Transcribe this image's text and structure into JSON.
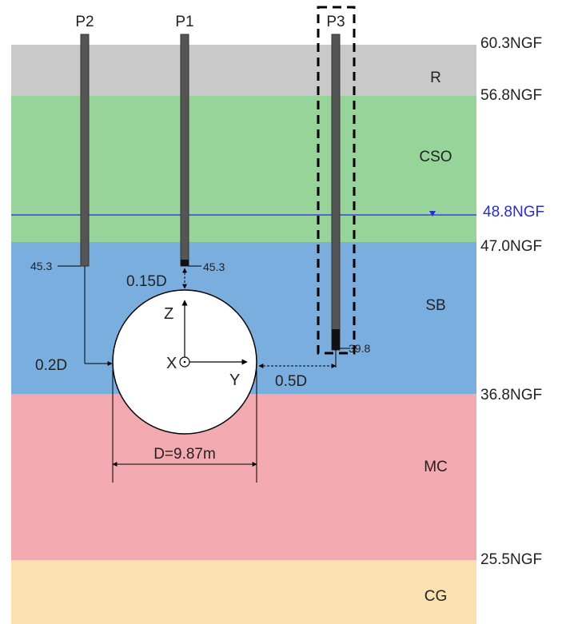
{
  "layers": [
    {
      "name": "R",
      "color": "#c9c9c9"
    },
    {
      "name": "CSO",
      "color": "#96d49a"
    },
    {
      "name": "SB",
      "color": "#7aaede"
    },
    {
      "name": "MC",
      "color": "#f2aab0"
    },
    {
      "name": "CG",
      "color": "#fbe1b0"
    }
  ],
  "elevations": [
    "60.3NGF",
    "56.8NGF",
    "48.8NGF",
    "47.0NGF",
    "36.8NGF",
    "25.5NGF"
  ],
  "water_table_color": "#2b2bd9",
  "piles": [
    {
      "label": "P2",
      "tip_value": "45.3"
    },
    {
      "label": "P1",
      "tip_value": "45.3"
    },
    {
      "label": "P3",
      "tip_value": "39.8"
    }
  ],
  "dimensions": {
    "p1_gap": "0.15D",
    "p2_gap": "0.2D",
    "p3_gap": "0.5D",
    "diameter": "D=9.87m"
  },
  "axes": {
    "z": "Z",
    "x": "X",
    "y": "Y"
  }
}
